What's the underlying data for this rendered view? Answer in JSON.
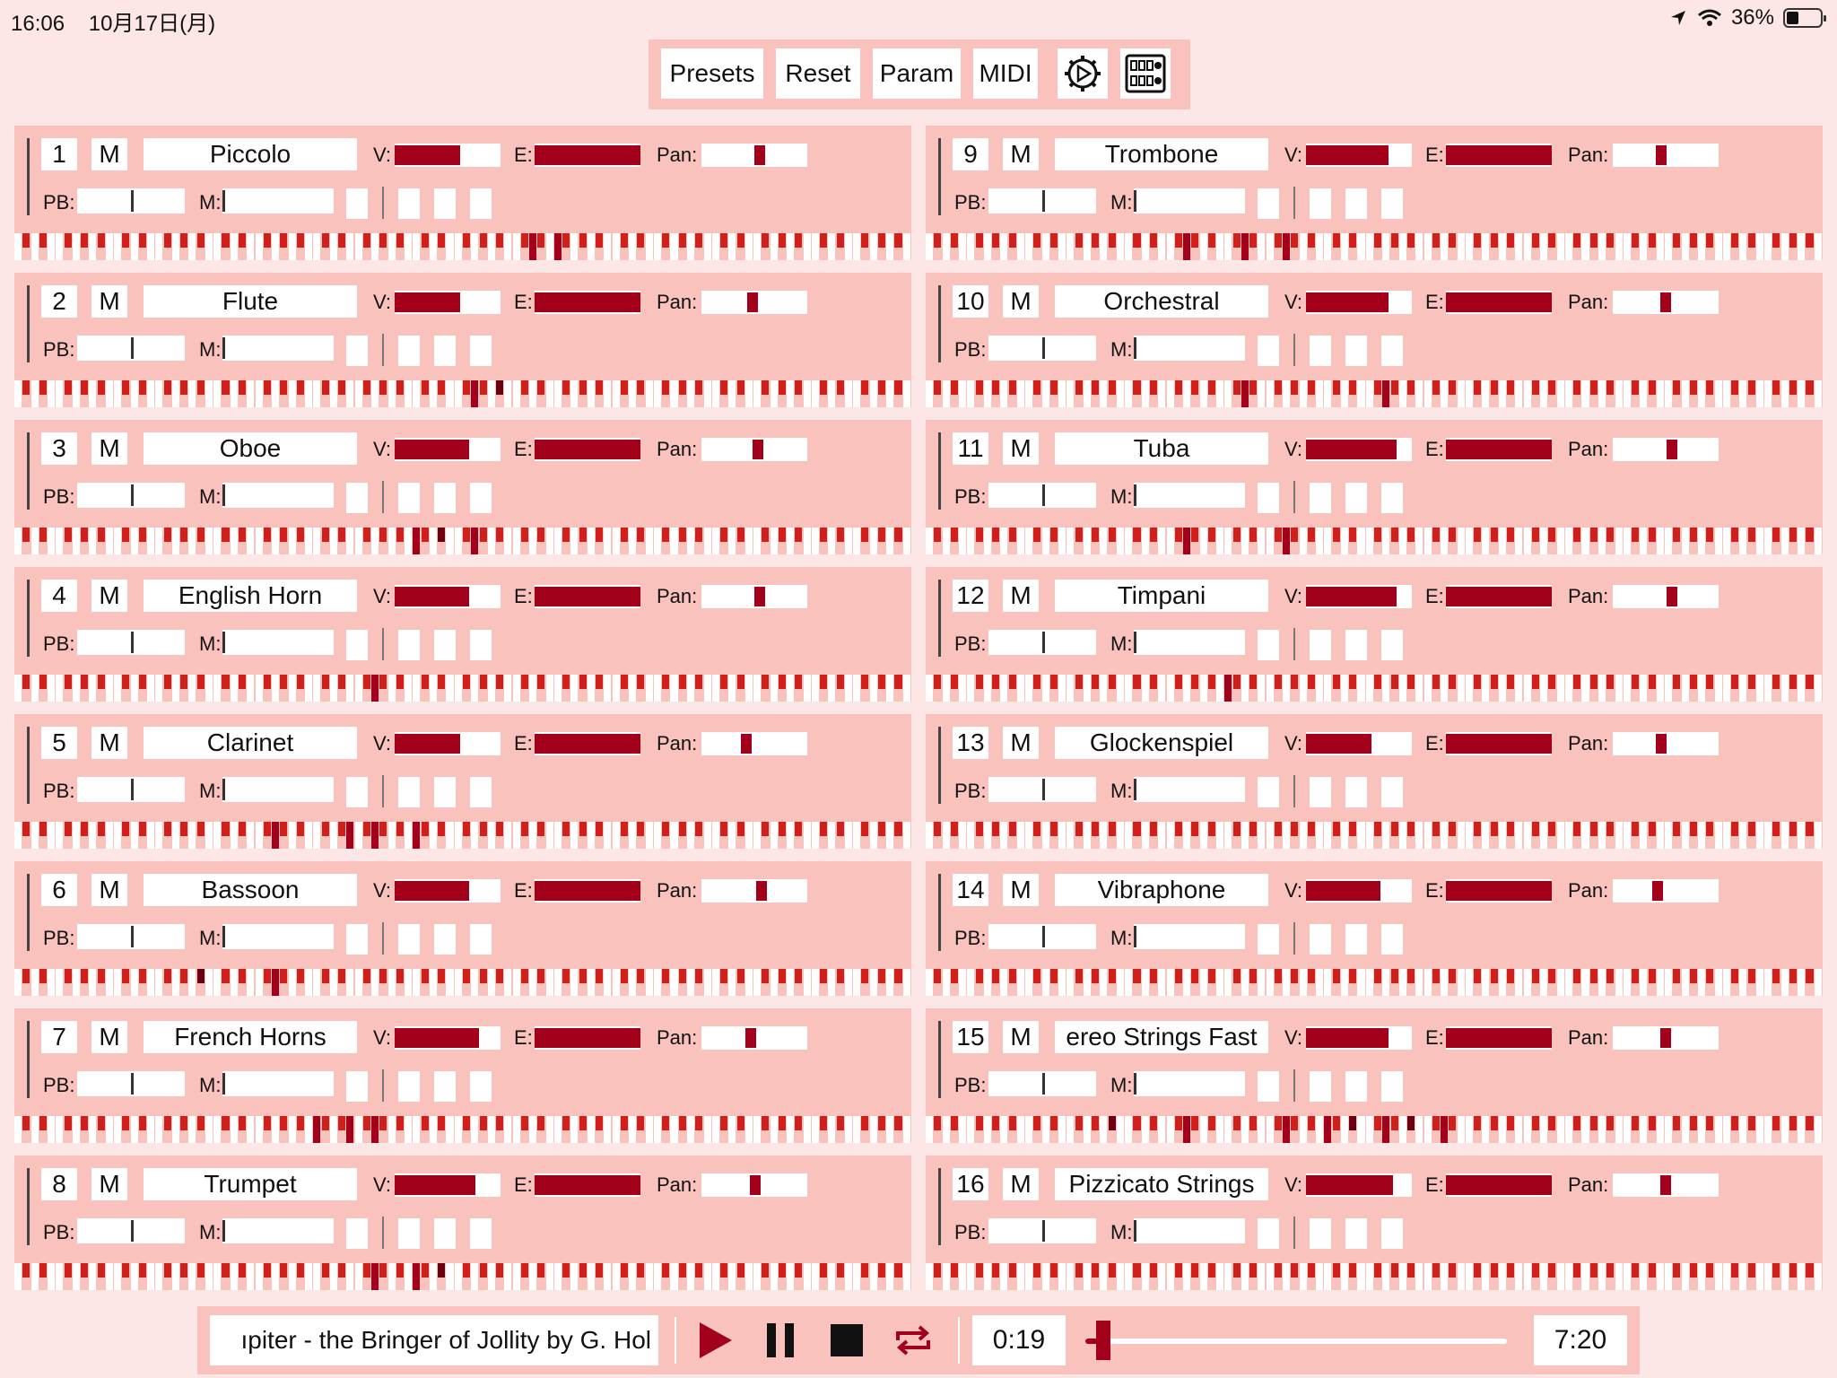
{
  "status_bar": {
    "time": "16:06",
    "date": "10月17日(月)",
    "battery": "36%",
    "battery_level": 0.36
  },
  "toolbar": {
    "presets": "Presets",
    "reset": "Reset",
    "param": "Param",
    "midi": "MIDI",
    "settings_icon": "gear-icon",
    "mixer_icon": "mixer-grid-icon"
  },
  "labels": {
    "m": "M",
    "v": "V:",
    "e": "E:",
    "pan": "Pan:",
    "pb": "PB:",
    "mod": "M:"
  },
  "colors": {
    "accent": "#a3001b",
    "panel": "#f9c2bd",
    "background": "#fde7e6"
  },
  "channels": [
    {
      "num": "1",
      "name": "Piccolo",
      "volume": 0.62,
      "expression": 1.0,
      "pan": 0.55,
      "pitch_bend": 0.5,
      "mod": 0.0,
      "notes": [
        62,
        65
      ]
    },
    {
      "num": "2",
      "name": "Flute",
      "volume": 0.62,
      "expression": 1.0,
      "pan": 0.48,
      "pitch_bend": 0.5,
      "mod": 0.0,
      "notes": [
        55,
        58
      ]
    },
    {
      "num": "3",
      "name": "Oboe",
      "volume": 0.7,
      "expression": 1.0,
      "pan": 0.53,
      "pitch_bend": 0.5,
      "mod": 0.0,
      "notes": [
        48,
        51,
        55
      ]
    },
    {
      "num": "4",
      "name": "English Horn",
      "volume": 0.7,
      "expression": 1.0,
      "pan": 0.55,
      "pitch_bend": 0.5,
      "mod": 0.0,
      "notes": [
        43
      ]
    },
    {
      "num": "5",
      "name": "Clarinet",
      "volume": 0.62,
      "expression": 1.0,
      "pan": 0.42,
      "pitch_bend": 0.5,
      "mod": 0.0,
      "notes": [
        31,
        40,
        43,
        48
      ]
    },
    {
      "num": "6",
      "name": "Bassoon",
      "volume": 0.7,
      "expression": 1.0,
      "pan": 0.57,
      "pitch_bend": 0.5,
      "mod": 0.0,
      "notes": [
        22,
        31
      ]
    },
    {
      "num": "7",
      "name": "French Horns",
      "volume": 0.8,
      "expression": 1.0,
      "pan": 0.47,
      "pitch_bend": 0.5,
      "mod": 0.0,
      "notes": [
        36,
        40,
        43
      ]
    },
    {
      "num": "8",
      "name": "Trumpet",
      "volume": 0.76,
      "expression": 1.0,
      "pan": 0.51,
      "pitch_bend": 0.5,
      "mod": 0.0,
      "notes": [
        43,
        48,
        51
      ]
    },
    {
      "num": "9",
      "name": "Trombone",
      "volume": 0.78,
      "expression": 1.0,
      "pan": 0.46,
      "pitch_bend": 0.5,
      "mod": 0.0,
      "notes": [
        31,
        38,
        43
      ]
    },
    {
      "num": "10",
      "name": "Orchestral",
      "volume": 0.78,
      "expression": 1.0,
      "pan": 0.5,
      "pitch_bend": 0.5,
      "mod": 0.0,
      "notes": [
        38,
        55
      ]
    },
    {
      "num": "11",
      "name": "Tuba",
      "volume": 0.86,
      "expression": 1.0,
      "pan": 0.56,
      "pitch_bend": 0.5,
      "mod": 0.0,
      "notes": [
        31,
        43
      ]
    },
    {
      "num": "12",
      "name": "Timpani",
      "volume": 0.86,
      "expression": 1.0,
      "pan": 0.56,
      "pitch_bend": 0.5,
      "mod": 0.0,
      "notes": [
        36
      ]
    },
    {
      "num": "13",
      "name": "Glockenspiel",
      "volume": 0.62,
      "expression": 1.0,
      "pan": 0.46,
      "pitch_bend": 0.5,
      "mod": 0.0,
      "notes": []
    },
    {
      "num": "14",
      "name": "Vibraphone",
      "volume": 0.7,
      "expression": 1.0,
      "pan": 0.42,
      "pitch_bend": 0.5,
      "mod": 0.0,
      "notes": []
    },
    {
      "num": "15",
      "name": "ereo Strings Fast",
      "volume": 0.78,
      "expression": 1.0,
      "pan": 0.5,
      "pitch_bend": 0.5,
      "mod": 0.0,
      "notes": [
        22,
        31,
        43,
        48,
        51,
        55,
        58,
        62
      ]
    },
    {
      "num": "16",
      "name": "Pizzicato Strings",
      "volume": 0.82,
      "expression": 1.0,
      "pan": 0.5,
      "pitch_bend": 0.5,
      "mod": 0.0,
      "notes": []
    }
  ],
  "transport": {
    "song_title": "ıpiter - the Bringer of Jollity by G. Hol",
    "current_time": "0:19",
    "total_time": "7:20",
    "position": 0.043,
    "play_icon": "play-icon",
    "pause_icon": "pause-icon",
    "stop_icon": "stop-icon",
    "repeat_icon": "repeat-icon"
  }
}
